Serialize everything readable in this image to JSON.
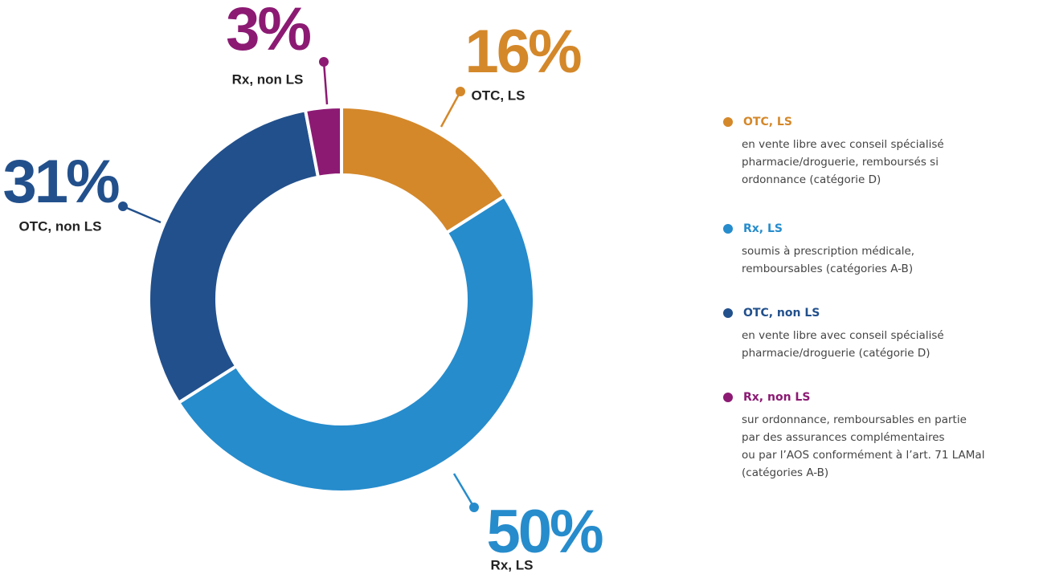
{
  "chart_data": {
    "type": "donut",
    "categories": [
      "OTC, LS",
      "Rx, LS",
      "OTC, non LS",
      "Rx, non LS"
    ],
    "values": [
      16,
      50,
      31,
      3
    ],
    "value_labels": [
      "16%",
      "50%",
      "31%",
      "3%"
    ],
    "colors": [
      "#d4882a",
      "#268ccc",
      "#22508c",
      "#8c1a73"
    ],
    "descriptions": [
      [
        "en vente libre avec conseil spécialisé",
        "pharmacie/droguerie, remboursés si",
        "ordonnance (catégorie D)"
      ],
      [
        "soumis à prescription médicale,",
        "remboursables (catégories A-B)"
      ],
      [
        "en vente libre avec conseil spécialisé",
        "pharmacie/droguerie (catégorie D)"
      ],
      [
        "sur ordonnance, remboursables en partie",
        "par des assurances complémentaires",
        "ou par l’AOS conformément à l’art. 71 LAMal",
        "(catégories A-B)"
      ]
    ]
  }
}
